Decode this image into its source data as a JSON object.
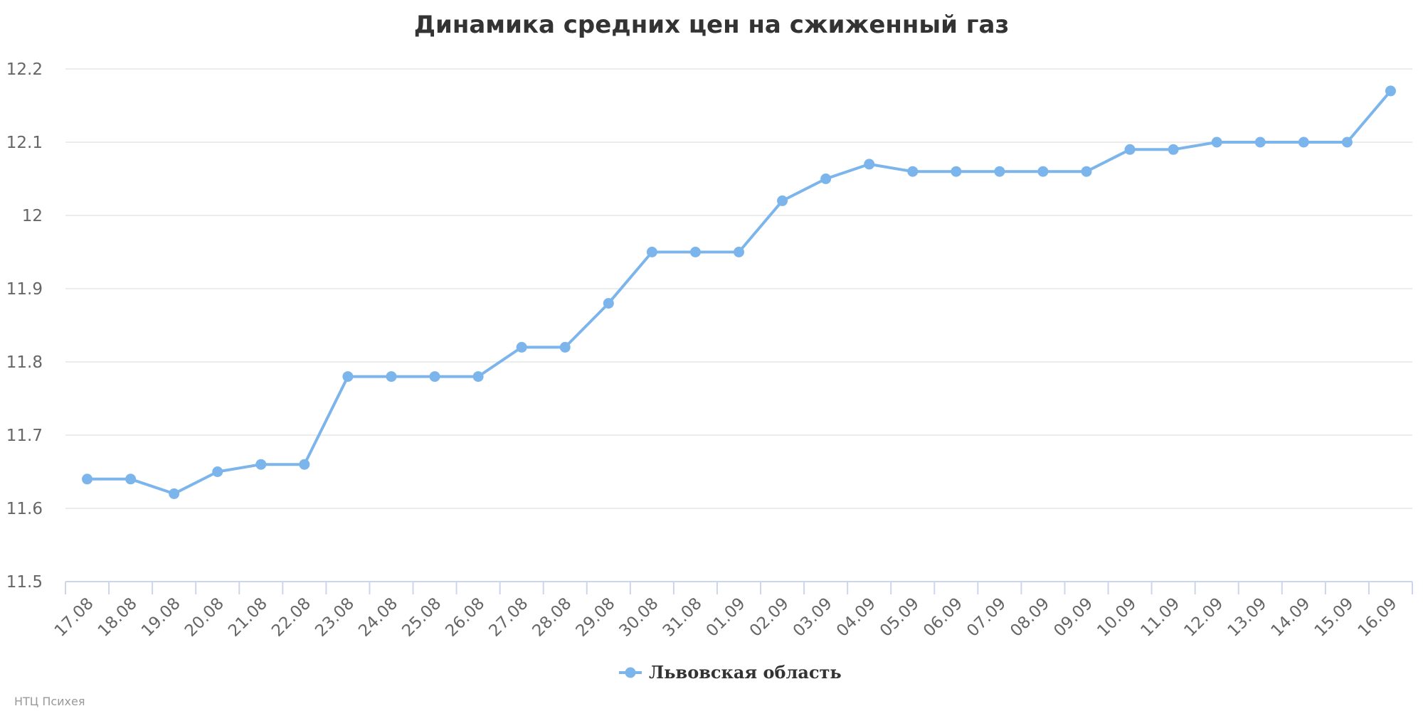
{
  "chart_data": {
    "type": "line",
    "title": "Динамика средних цен на сжиженный газ",
    "categories": [
      "17.08",
      "18.08",
      "19.08",
      "20.08",
      "21.08",
      "22.08",
      "23.08",
      "24.08",
      "25.08",
      "26.08",
      "27.08",
      "28.08",
      "29.08",
      "30.08",
      "31.08",
      "01.09",
      "02.09",
      "03.09",
      "04.09",
      "05.09",
      "06.09",
      "07.09",
      "08.09",
      "09.09",
      "10.09",
      "11.09",
      "12.09",
      "13.09",
      "14.09",
      "15.09",
      "16.09"
    ],
    "series": [
      {
        "name": "Львовская область",
        "values": [
          11.64,
          11.64,
          11.62,
          11.65,
          11.66,
          11.66,
          11.78,
          11.78,
          11.78,
          11.78,
          11.82,
          11.82,
          11.88,
          11.95,
          11.95,
          11.95,
          12.02,
          12.05,
          12.07,
          12.06,
          12.06,
          12.06,
          12.06,
          12.06,
          12.09,
          12.09,
          12.1,
          12.1,
          12.1,
          12.1,
          12.17
        ],
        "color": "#7cb5ec"
      }
    ],
    "ylim": [
      11.5,
      12.2
    ],
    "yticks": [
      "11.5",
      "11.6",
      "11.7",
      "11.8",
      "11.9",
      "12",
      "12.1",
      "12.2"
    ],
    "grid": true,
    "legend_position": "bottom-center"
  },
  "credits": "НТЦ Психея",
  "colors": {
    "grid": "#e6e6e6",
    "axis": "#ccd6eb",
    "text": "#666666",
    "title": "#333333"
  }
}
